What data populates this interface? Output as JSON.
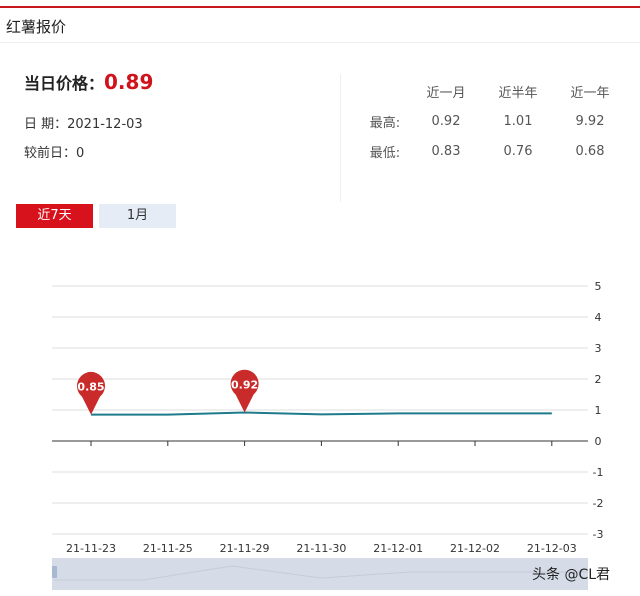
{
  "title": "红薯报价",
  "price": {
    "label": "当日价格：",
    "value": "0.89",
    "date_label": "日 期：",
    "date": "2021-12-03",
    "change_label": "较前日：",
    "change": "0"
  },
  "stats": {
    "columns": [
      "近一月",
      "近半年",
      "近一年"
    ],
    "rows": [
      {
        "label": "最高:",
        "values": [
          "0.92",
          "1.01",
          "9.92"
        ]
      },
      {
        "label": "最低:",
        "values": [
          "0.83",
          "0.76",
          "0.68"
        ]
      }
    ]
  },
  "tabs": [
    {
      "label": "近7天",
      "active": true
    },
    {
      "label": "1月",
      "active": false
    }
  ],
  "watermark": "头条 @CL君",
  "chart_data": {
    "type": "line",
    "categories": [
      "21-11-23",
      "21-11-25",
      "21-11-29",
      "21-11-30",
      "21-12-01",
      "21-12-02",
      "21-12-03"
    ],
    "values": [
      0.85,
      0.85,
      0.92,
      0.86,
      0.89,
      0.89,
      0.89
    ],
    "ylim": [
      -3,
      5
    ],
    "yticks": [
      5,
      4,
      3,
      2,
      1,
      0,
      -1,
      -2,
      -3
    ],
    "markers": [
      {
        "category": "21-11-23",
        "label": "0.85"
      },
      {
        "category": "21-11-29",
        "label": "0.92"
      }
    ],
    "line_color": "#1f7a8c",
    "marker_color": "#c92a2a",
    "grid": true
  }
}
